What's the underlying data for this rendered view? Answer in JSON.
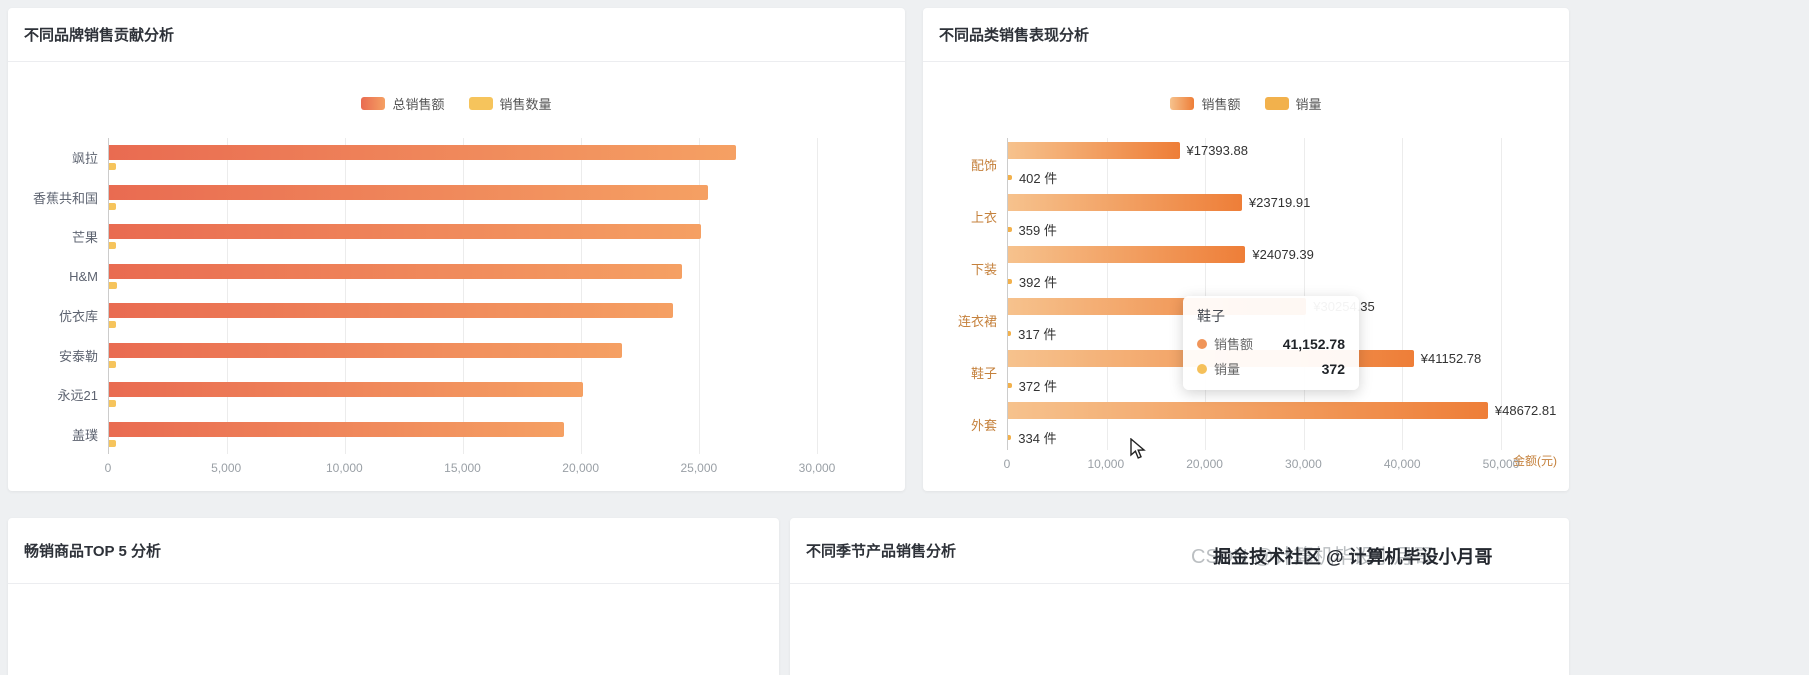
{
  "page": {
    "background": "#eef0f2",
    "watermark": {
      "light_text": "CSDN @计算机毕设小月哥",
      "dark_text": "掘金技术社区 @ 计算机毕设小月哥"
    }
  },
  "panels": {
    "brand": {
      "title": "不同品牌销售贡献分析"
    },
    "category": {
      "title": "不同品类销售表现分析"
    },
    "top5": {
      "title": "畅销商品TOP 5 分析"
    },
    "season": {
      "title": "不同季节产品销售分析"
    }
  },
  "chart_data": [
    {
      "type": "bar",
      "orientation": "horizontal",
      "title": "不同品牌销售贡献分析",
      "categories": [
        "飒拉",
        "香蕉共和国",
        "芒果",
        "H&M",
        "优衣库",
        "安泰勒",
        "永远21",
        "盖璞"
      ],
      "series": [
        {
          "name": "总销售额",
          "color_start": "#e96b51",
          "color_end": "#f5a063",
          "values": [
            26560,
            25380,
            25100,
            24260,
            23900,
            21720,
            20100,
            19280
          ]
        },
        {
          "name": "销售数量",
          "color": "#f6c45c",
          "values": [
            310,
            300,
            290,
            320,
            300,
            280,
            310,
            290
          ]
        }
      ],
      "xlim": [
        0,
        30000
      ],
      "x_ticks": [
        0,
        5000,
        10000,
        15000,
        20000,
        25000,
        30000
      ],
      "legend_position": "top",
      "grid": true
    },
    {
      "type": "bar",
      "orientation": "horizontal",
      "title": "不同品类销售表现分析",
      "categories": [
        "配饰",
        "上衣",
        "下装",
        "连衣裙",
        "鞋子",
        "外套"
      ],
      "series": [
        {
          "name": "销售额",
          "color_start": "#f6c28d",
          "color_end": "#ee7e38",
          "values": [
            17393.88,
            23719.91,
            24079.39,
            30254.35,
            41152.78,
            48672.81
          ],
          "labels": [
            "¥17393.88",
            "¥23719.91",
            "¥24079.39",
            "¥30254.35",
            "¥41152.78",
            "¥48672.81"
          ]
        },
        {
          "name": "销量",
          "color": "#f2b14c",
          "values": [
            402,
            359,
            392,
            317,
            372,
            334
          ],
          "labels": [
            "402 件",
            "359 件",
            "392 件",
            "317 件",
            "372 件",
            "334 件"
          ]
        }
      ],
      "xlim": [
        0,
        50000
      ],
      "x_ticks": [
        0,
        10000,
        20000,
        30000,
        40000,
        50000
      ],
      "x_axis_name": "金额(元)",
      "legend_position": "top",
      "grid": true,
      "tooltip": {
        "title": "鞋子",
        "rows": [
          {
            "label": "销售额",
            "value": "41,152.78",
            "dot_color": "#f0955a"
          },
          {
            "label": "销量",
            "value": "372",
            "dot_color": "#f5c05a"
          }
        ]
      }
    }
  ]
}
